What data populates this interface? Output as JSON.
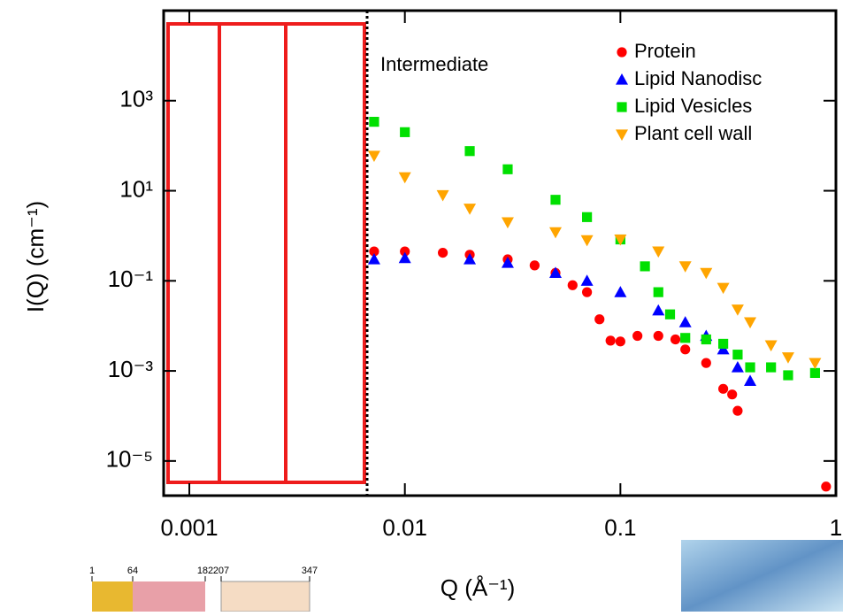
{
  "chart_data": {
    "type": "scatter",
    "x_label": "Q (Å⁻¹)",
    "y_label": "I(Q) (cm⁻¹)",
    "annotation": "Intermediate",
    "xscale": "log",
    "yscale": "log",
    "xlim": [
      0.00076,
      1
    ],
    "ylim": [
      1.7e-06,
      100000
    ],
    "xticks": [
      0.001,
      0.01,
      0.1,
      1
    ],
    "yticks": [
      {
        "value": 1000,
        "label": "10³"
      },
      {
        "value": 10,
        "label": "10¹"
      },
      {
        "value": 0.1,
        "label": "10⁻¹"
      },
      {
        "value": 0.001,
        "label": "10⁻³"
      },
      {
        "value": 1e-05,
        "label": "10⁻⁵"
      }
    ],
    "legend": "upper right",
    "series": [
      {
        "name": "Protein",
        "color": "#ff0000",
        "marker": "circle",
        "x": [
          0.0072,
          0.01,
          0.015,
          0.02,
          0.03,
          0.04,
          0.05,
          0.06,
          0.07,
          0.08,
          0.09,
          0.1,
          0.12,
          0.15,
          0.18,
          0.2,
          0.25,
          0.3,
          0.33,
          0.35,
          0.9
        ],
        "values": [
          0.45,
          0.45,
          0.42,
          0.38,
          0.3,
          0.22,
          0.15,
          0.08,
          0.056,
          0.014,
          0.0047,
          0.0045,
          0.006,
          0.006,
          0.005,
          0.003,
          0.0015,
          0.0004,
          0.0003,
          0.00013,
          2.7e-06
        ]
      },
      {
        "name": "Lipid Nanodisc",
        "color": "#0000ff",
        "marker": "triangle-up",
        "x": [
          0.0072,
          0.01,
          0.02,
          0.03,
          0.05,
          0.07,
          0.1,
          0.15,
          0.2,
          0.25,
          0.3,
          0.35,
          0.4
        ],
        "values": [
          0.3,
          0.32,
          0.3,
          0.25,
          0.15,
          0.1,
          0.056,
          0.022,
          0.012,
          0.006,
          0.003,
          0.0012,
          0.0006
        ]
      },
      {
        "name": "Lipid Vesicles",
        "color": "#00e000",
        "marker": "square",
        "x": [
          0.0072,
          0.01,
          0.02,
          0.03,
          0.05,
          0.07,
          0.1,
          0.13,
          0.15,
          0.17,
          0.2,
          0.25,
          0.3,
          0.35,
          0.4,
          0.5,
          0.6,
          0.8
        ],
        "values": [
          340,
          200,
          76,
          30,
          6.3,
          2.6,
          0.83,
          0.21,
          0.056,
          0.018,
          0.0054,
          0.005,
          0.004,
          0.0023,
          0.0012,
          0.0012,
          0.0008,
          0.0009
        ]
      },
      {
        "name": "Plant cell wall",
        "color": "#ffa500",
        "marker": "triangle-down",
        "x": [
          0.0072,
          0.01,
          0.015,
          0.02,
          0.03,
          0.05,
          0.07,
          0.1,
          0.15,
          0.2,
          0.25,
          0.3,
          0.35,
          0.4,
          0.5,
          0.6,
          0.8
        ],
        "values": [
          60,
          20,
          8,
          4,
          2,
          1.2,
          0.8,
          0.83,
          0.45,
          0.21,
          0.15,
          0.07,
          0.023,
          0.012,
          0.0037,
          0.002,
          0.0015
        ]
      }
    ]
  },
  "footer_fragment": {
    "labels": [
      "1",
      "64",
      "182",
      "207",
      "347"
    ]
  }
}
